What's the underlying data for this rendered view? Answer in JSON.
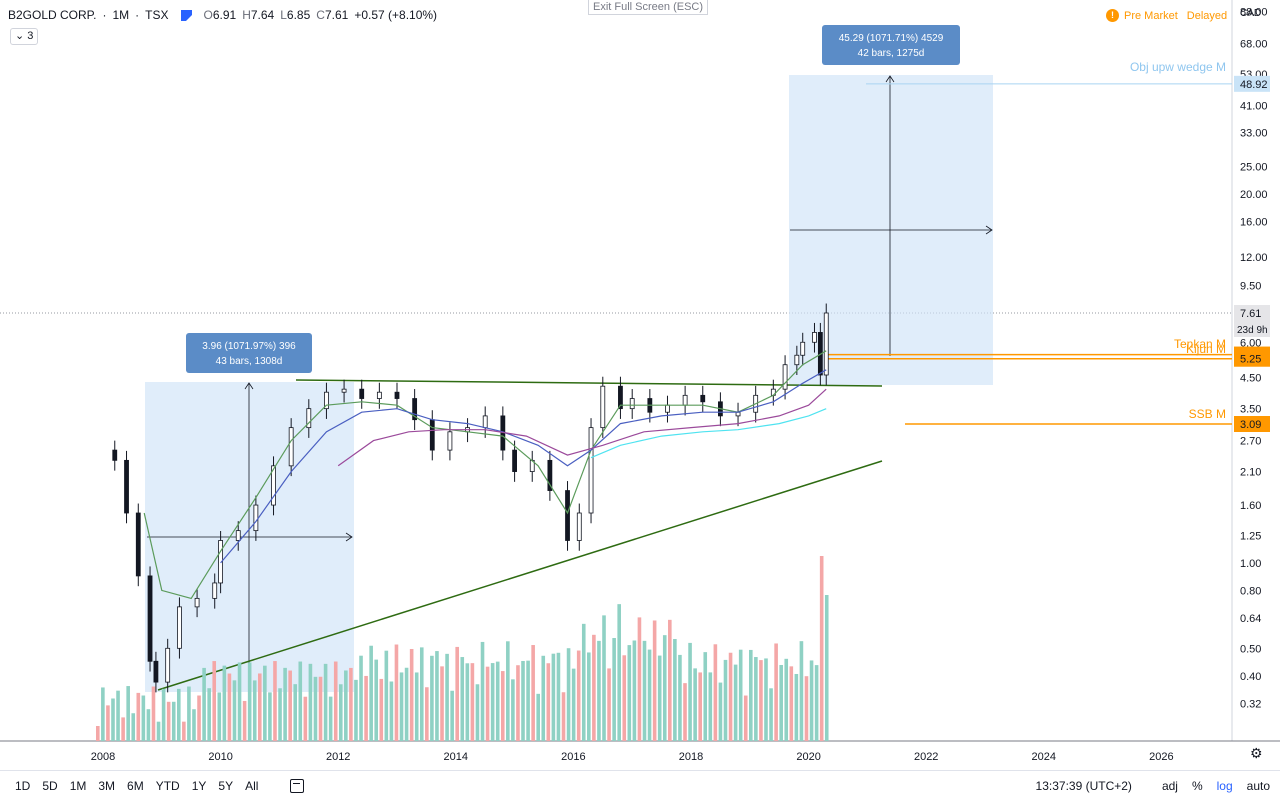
{
  "header": {
    "symbol": "B2GOLD CORP.",
    "interval": "1M",
    "exchange": "TSX",
    "open_label": "O",
    "open": "6.91",
    "high_label": "H",
    "high": "7.64",
    "low_label": "L",
    "low": "6.85",
    "close_label": "C",
    "close": "7.61",
    "change": "+0.57 (+8.10%)",
    "collapse_count": "3"
  },
  "exit_fullscreen": "Exit Full Screen (ESC)",
  "market_status": {
    "label": "Pre Market",
    "delayed": "Delayed"
  },
  "currency": "CAD",
  "price_axis": {
    "ticks": [
      "88.00",
      "68.00",
      "53.00",
      "41.00",
      "33.00",
      "25.00",
      "20.00",
      "16.00",
      "12.00",
      "9.50",
      "6.00",
      "4.50",
      "3.50",
      "2.70",
      "2.10",
      "1.60",
      "1.25",
      "1.00",
      "0.80",
      "0.64",
      "0.50",
      "0.40",
      "0.32"
    ],
    "last_price": "7.61",
    "countdown": "23d 9h",
    "markers": [
      {
        "value": "48.92",
        "color": "#c9e3f7"
      },
      {
        "value": "5.43",
        "color": "#ff9800"
      },
      {
        "value": "5.25",
        "color": "#ff9800"
      },
      {
        "value": "3.09",
        "color": "#ff9800"
      }
    ]
  },
  "time_axis": {
    "ticks": [
      "2008",
      "2010",
      "2012",
      "2014",
      "2016",
      "2018",
      "2020",
      "2022",
      "2024",
      "2026"
    ]
  },
  "annotations": {
    "measure1": {
      "line1": "3.96 (1071.97%) 396",
      "line2": "43 bars, 1308d"
    },
    "measure2": {
      "line1": "45.29 (1071.71%) 4529",
      "line2": "42 bars, 1275d"
    },
    "obj_label": "Obj upw wedge M",
    "tenkan_label": "Tenkan M",
    "kijun_label": "Kijun M",
    "ssb_label": "SSB M"
  },
  "bottom_bar": {
    "ranges": [
      "1D",
      "5D",
      "1M",
      "3M",
      "6M",
      "YTD",
      "1Y",
      "5Y",
      "All"
    ],
    "clock": "13:37:39 (UTC+2)",
    "adj": "adj",
    "percent": "%",
    "log": "log",
    "auto": "auto"
  }
}
